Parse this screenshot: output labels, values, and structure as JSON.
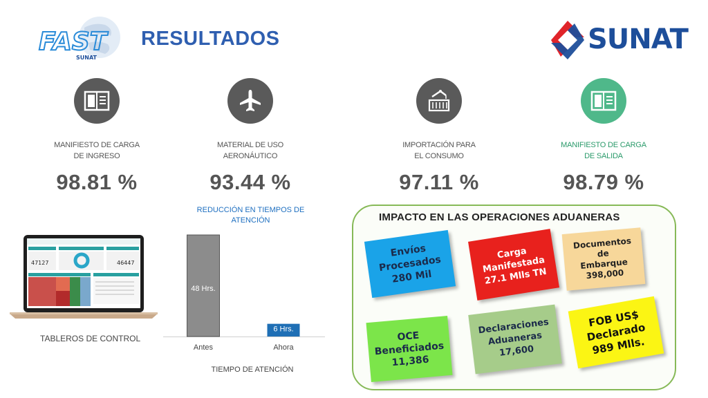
{
  "header": {
    "title": "RESULTADOS",
    "logo_left_text": "FAST",
    "logo_left_sub": "SUNAT",
    "logo_right_text": "SUNAT"
  },
  "kpis": [
    {
      "label": "MANIFIESTO DE CARGA\nDE INGRESO",
      "value": "98.81 %",
      "icon": "book-icon",
      "color": "#5a5a5a"
    },
    {
      "label": "MATERIAL DE USO\nAERONÁUTICO",
      "value": "93.44 %",
      "icon": "airplane-icon",
      "color": "#5a5a5a"
    },
    {
      "label": "IMPORTACIÓN PARA\nEL CONSUMO",
      "value": "97.11 %",
      "icon": "crane-container-icon",
      "color": "#5a5a5a"
    },
    {
      "label": "MANIFIESTO DE CARGA\nDE SALIDA",
      "value": "98.79 %",
      "icon": "book-icon",
      "color": "#4fb88a"
    }
  ],
  "dashboard": {
    "label": "TABLEROS DE CONTROL",
    "screen_values": [
      "47127",
      "46447"
    ]
  },
  "chart_data": {
    "type": "bar",
    "title": "REDUCCIÓN EN TIEMPOS DE\nATENCIÓN",
    "xlabel": "TIEMPO DE ATENCIÓN",
    "ylabel": "",
    "categories": [
      "Antes",
      "Ahora"
    ],
    "values": [
      48,
      6
    ],
    "data_labels": [
      "48 Hrs.",
      "6 Hrs."
    ],
    "colors": [
      "#8c8c8c",
      "#1f6fb5"
    ],
    "ylim": [
      0,
      50
    ],
    "grid": false
  },
  "impact": {
    "title": "IMPACTO EN LAS OPERACIONES ADUANERAS",
    "notes": [
      {
        "text": "Envíos\nProcesados\n280 Mil",
        "color": "#1aa3e8",
        "text_color": "#1b2a4a"
      },
      {
        "text": "Carga\nManifestada\n27.1 Mlls TN",
        "color": "#e8211d",
        "text_color": "#ffffff"
      },
      {
        "text": "Documentos\nde\nEmbarque\n398,000",
        "color": "#f7d79a",
        "text_color": "#222222"
      },
      {
        "text": "OCE\nBeneficiados\n11,386",
        "color": "#7ce54a",
        "text_color": "#1b2a4a"
      },
      {
        "text": "Declaraciones\nAduaneras\n17,600",
        "color": "#a6cc8a",
        "text_color": "#1b2a4a"
      },
      {
        "text": "FOB US$\nDeclarado\n989 Mlls.",
        "color": "#fbf514",
        "text_color": "#111111"
      }
    ]
  }
}
